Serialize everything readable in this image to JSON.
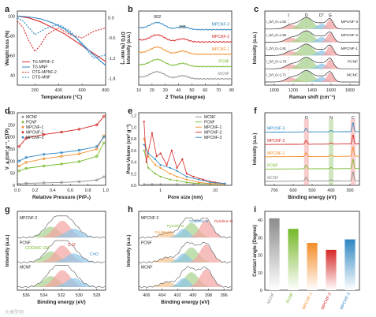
{
  "colors": {
    "black": "#222222",
    "red": "#d62828",
    "orange": "#f28c28",
    "green": "#76b82a",
    "blue": "#2e86c1",
    "gray": "#8c8c8c",
    "lightred": "#f4a3a3",
    "lightgreen": "#a8d18d",
    "lightblue": "#8cc4e8"
  },
  "watermark": "大模型网",
  "chart_data": [
    {
      "panel": "a",
      "type": "line",
      "xlabel": "Temperature (°C)",
      "ylabel_left": "Weight loss (%)",
      "ylabel_right": "DTG (% min⁻¹)",
      "xticks": [
        "200",
        "400",
        "600",
        "800"
      ],
      "yticks_left": [
        "40",
        "60",
        "80",
        "100"
      ],
      "yticks_right": [
        "0.0",
        "-0.6",
        "-1.2",
        "-1.8"
      ],
      "xlim": [
        50,
        800
      ],
      "ylim_left": [
        30,
        105
      ],
      "ylim_right": [
        -2.0,
        0.2
      ],
      "legend": [
        "TG-MPNF-2",
        "TG-MNF",
        "DTG-MPNF-2",
        "DTG-MNF"
      ],
      "series": [
        {
          "name": "TG-MPNF-2",
          "axis": "left",
          "style": "solid",
          "x": [
            50,
            150,
            250,
            350,
            450,
            550,
            650,
            750,
            800
          ],
          "y": [
            100,
            98,
            94,
            88,
            82,
            74,
            66,
            58,
            54
          ]
        },
        {
          "name": "TG-MNF",
          "axis": "left",
          "style": "solid",
          "x": [
            50,
            150,
            250,
            350,
            450,
            550,
            650,
            750,
            800
          ],
          "y": [
            100,
            99,
            97,
            93,
            87,
            78,
            66,
            55,
            50
          ]
        },
        {
          "name": "DTG-MPNF-2",
          "axis": "right",
          "style": "dash",
          "x": [
            50,
            100,
            150,
            200,
            250,
            300,
            400,
            500,
            600,
            700,
            800
          ],
          "y": [
            -0.1,
            -0.3,
            -0.7,
            -1.0,
            -0.8,
            -0.5,
            -0.3,
            -0.5,
            -0.6,
            -0.4,
            -0.3
          ]
        },
        {
          "name": "DTG-MNF",
          "axis": "right",
          "style": "dash",
          "x": [
            50,
            100,
            150,
            200,
            250,
            300,
            400,
            500,
            600,
            700,
            800
          ],
          "y": [
            0.0,
            -0.1,
            -0.3,
            -0.5,
            -0.4,
            -0.3,
            -0.2,
            -0.4,
            -0.8,
            -1.2,
            -1.1
          ]
        }
      ]
    },
    {
      "panel": "b",
      "type": "line",
      "xlabel": "2 Theta (degree)",
      "ylabel": "Intensity (a.u.)",
      "xticks": [
        "10",
        "20",
        "30",
        "40",
        "50",
        "60",
        "70",
        "80"
      ],
      "xlim": [
        10,
        80
      ],
      "annotations": [
        "002",
        "101"
      ],
      "series": [
        {
          "name": "MPCNF-3",
          "offset": 4
        },
        {
          "name": "MPCNF-2",
          "offset": 3
        },
        {
          "name": "MPCNF-1",
          "offset": 2
        },
        {
          "name": "PCNF",
          "offset": 1
        },
        {
          "name": "MCNF",
          "offset": 0
        }
      ]
    },
    {
      "panel": "c",
      "type": "line",
      "xlabel": "Raman shift (cm⁻¹)",
      "ylabel": "Intensity (a.u.)",
      "xticks": [
        "1000",
        "1200",
        "1400",
        "1600",
        "1800"
      ],
      "xlim": [
        900,
        1900
      ],
      "band_labels": [
        "I",
        "D",
        "D''",
        "G"
      ],
      "series": [
        {
          "name": "MPCNF-3",
          "ratio_label": "I_D/I_G=1.82"
        },
        {
          "name": "MPCNF-2",
          "ratio_label": "I_D/I_G=1.85"
        },
        {
          "name": "MPCNF-1",
          "ratio_label": "I_D/I_G=1.91"
        },
        {
          "name": "PCNF",
          "ratio_label": "I_D/I_G=1.79"
        },
        {
          "name": "MCNF",
          "ratio_label": "I_D/I_G=1.71"
        }
      ]
    },
    {
      "panel": "d",
      "type": "scatter",
      "xlabel": "Relative Pressure (P/P₀)",
      "ylabel": "V_a (cm³ g⁻¹, STP)",
      "xticks": [
        "0.0",
        "0.2",
        "0.4",
        "0.6",
        "0.8",
        "1.0"
      ],
      "yticks": [
        "0",
        "50",
        "100",
        "150",
        "200",
        "250",
        "300"
      ],
      "xlim": [
        0,
        1.0
      ],
      "ylim": [
        0,
        300
      ],
      "legend": [
        "MCNF",
        "PCNF",
        "MPCNF-1",
        "MPCNF-2",
        "MPCNF-3"
      ],
      "series": [
        {
          "name": "MCNF",
          "x": [
            0.02,
            0.1,
            0.3,
            0.5,
            0.7,
            0.9,
            0.98
          ],
          "y": [
            5,
            8,
            10,
            12,
            15,
            22,
            35
          ]
        },
        {
          "name": "PCNF",
          "x": [
            0.02,
            0.1,
            0.3,
            0.5,
            0.7,
            0.9,
            0.98
          ],
          "y": [
            60,
            70,
            80,
            88,
            98,
            120,
            175
          ]
        },
        {
          "name": "MPCNF-1",
          "x": [
            0.02,
            0.1,
            0.3,
            0.5,
            0.7,
            0.9,
            0.98
          ],
          "y": [
            80,
            95,
            110,
            120,
            130,
            150,
            205
          ]
        },
        {
          "name": "MPCNF-2",
          "x": [
            0.02,
            0.1,
            0.3,
            0.5,
            0.7,
            0.9,
            0.98
          ],
          "y": [
            160,
            195,
            210,
            220,
            232,
            250,
            285
          ]
        },
        {
          "name": "MPCNF-3",
          "x": [
            0.02,
            0.1,
            0.3,
            0.5,
            0.7,
            0.9,
            0.98
          ],
          "y": [
            100,
            115,
            128,
            135,
            145,
            160,
            200
          ]
        }
      ]
    },
    {
      "panel": "e",
      "type": "line",
      "xlabel": "Pore size (nm)",
      "ylabel": "Pore Volume (cm³ g⁻¹)",
      "xticks": [
        "1",
        "10"
      ],
      "yticks": [
        "0.0",
        "0.2",
        "0.4",
        "0.6",
        "0.8",
        "1.0",
        "1.2"
      ],
      "xlim": [
        0.4,
        20
      ],
      "ylim": [
        0,
        1.25
      ],
      "legend": [
        "MCNF",
        "PCNF",
        "MPCNF-1",
        "MPCNF-2",
        "MPCNF-3"
      ],
      "series": [
        {
          "name": "MCNF",
          "x": [
            0.5,
            0.7,
            1,
            2,
            4,
            8,
            15
          ],
          "y": [
            0.02,
            0.02,
            0.02,
            0.02,
            0.02,
            0.02,
            0.02
          ]
        },
        {
          "name": "PCNF",
          "x": [
            0.5,
            0.6,
            0.8,
            1,
            1.5,
            2,
            3,
            5,
            8,
            15
          ],
          "y": [
            0.6,
            0.3,
            0.2,
            0.15,
            0.1,
            0.08,
            0.05,
            0.03,
            0.02,
            0.02
          ]
        },
        {
          "name": "MPCNF-1",
          "x": [
            0.5,
            0.6,
            0.8,
            1,
            1.5,
            2,
            3,
            5,
            8,
            15
          ],
          "y": [
            0.8,
            0.5,
            0.35,
            0.3,
            0.2,
            0.15,
            0.1,
            0.05,
            0.03,
            0.02
          ]
        },
        {
          "name": "MPCNF-2",
          "x": [
            0.5,
            0.55,
            0.7,
            0.85,
            1,
            1.3,
            1.6,
            2,
            2.5,
            3,
            4,
            6,
            10,
            15
          ],
          "y": [
            1.1,
            0.4,
            0.9,
            0.5,
            0.55,
            0.35,
            0.6,
            0.3,
            0.45,
            0.2,
            0.15,
            0.1,
            0.05,
            0.03
          ]
        },
        {
          "name": "MPCNF-3",
          "x": [
            0.5,
            0.6,
            0.8,
            1,
            1.5,
            2,
            3,
            5,
            8,
            15
          ],
          "y": [
            0.7,
            0.55,
            0.45,
            0.35,
            0.3,
            0.25,
            0.15,
            0.1,
            0.05,
            0.03
          ]
        }
      ]
    },
    {
      "panel": "f",
      "type": "line",
      "xlabel": "Binding energy (eV)",
      "ylabel": "Intensity (a.u.)",
      "xticks": [
        "700",
        "600",
        "500",
        "400",
        "300"
      ],
      "xlim": [
        750,
        250
      ],
      "peak_labels": [
        "O",
        "N",
        "C"
      ],
      "series": [
        {
          "name": "MPCNF-3"
        },
        {
          "name": "MPCNF-2"
        },
        {
          "name": "MPCNF-1"
        },
        {
          "name": "PCNF"
        },
        {
          "name": "MCNF"
        }
      ]
    },
    {
      "panel": "g",
      "type": "line",
      "xlabel": "Binding energy (eV)",
      "ylabel": "Intensity (a.u.)",
      "xticks": [
        "536",
        "534",
        "532",
        "530",
        "528"
      ],
      "xlim": [
        537,
        527
      ],
      "peak_labels": [
        "COOH/C-OH",
        "C-O",
        "C=O"
      ],
      "series": [
        {
          "name": "MPCNF-2"
        },
        {
          "name": "PCNF"
        },
        {
          "name": "MCNF"
        }
      ]
    },
    {
      "panel": "h",
      "type": "line",
      "xlabel": "Binding energy (eV)",
      "ylabel": "Intensity (a.u.)",
      "xticks": [
        "406",
        "404",
        "402",
        "400",
        "398",
        "396"
      ],
      "xlim": [
        407,
        395
      ],
      "peak_labels": [
        "Oxidized-N",
        "Pyrrolic-N",
        "Graphitic-N",
        "Pyridinic-N"
      ],
      "series": [
        {
          "name": "MPCNF-2"
        },
        {
          "name": "PCNF"
        },
        {
          "name": "MCNF"
        }
      ]
    },
    {
      "panel": "i",
      "type": "bar",
      "xlabel": "",
      "ylabel": "Contact angle (Degree)",
      "yticks": [
        "0",
        "10",
        "20",
        "30",
        "40"
      ],
      "ylim": [
        0,
        45
      ],
      "categories": [
        "MCNF",
        "PCNF",
        "MPCNF-1",
        "MPCNF-2",
        "MPCNF-3"
      ],
      "values": [
        41,
        35,
        27,
        23,
        29
      ]
    }
  ]
}
